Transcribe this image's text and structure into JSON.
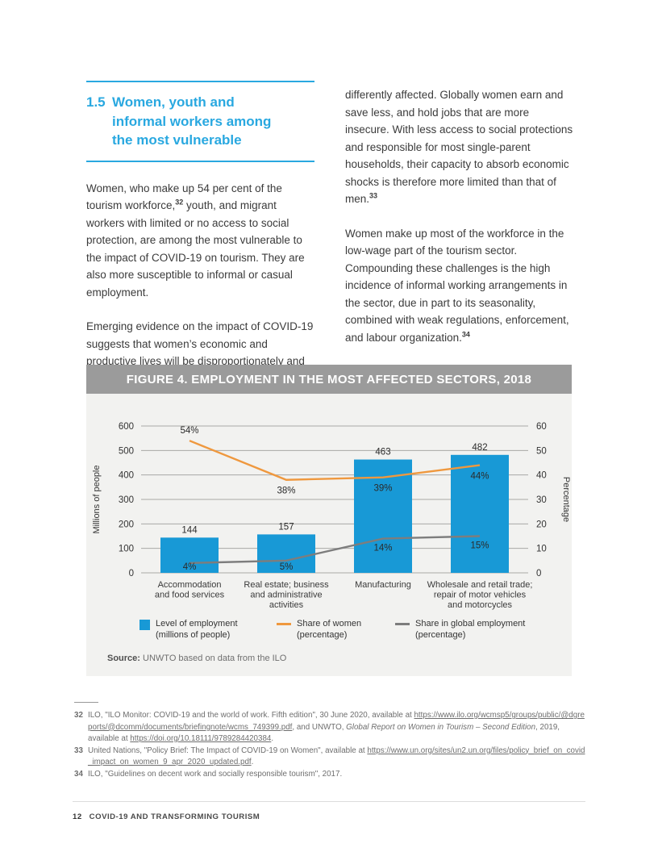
{
  "section": {
    "number": "1.5",
    "title": "Women, youth and informal workers among the most vulnerable"
  },
  "body": {
    "left_paragraphs": [
      [
        {
          "t": "Women, who make up 54 per cent of the tourism workforce,"
        },
        {
          "t": "32",
          "s": "sup"
        },
        {
          "t": " youth, and migrant workers with limited or no access to social protection, are among the most vulnerable to the impact of COVID-19 on tourism. They are also more susceptible to informal or casual employment."
        }
      ],
      [
        {
          "t": "Emerging evidence on the impact of COVID-19 suggests that women’s economic and productive lives will be disproportionately and"
        }
      ]
    ],
    "right_paragraphs": [
      [
        {
          "t": "differently affected. Globally women earn and save less, and hold jobs that are more insecure. With less access to social protections and responsible for most single-parent households, their capacity to absorb economic shocks is therefore more limited than that of men."
        },
        {
          "t": "33",
          "s": "sup"
        }
      ],
      [
        {
          "t": "Women make up most of the workforce in the low-wage part of the tourism sector. Compounding these challenges is the high incidence of informal working arrangements in the sector, due in part to its seasonality, combined with weak regulations, enforcement, and labour organization."
        },
        {
          "t": "34",
          "s": "sup"
        }
      ]
    ]
  },
  "chart_data": {
    "type": "bar+line",
    "title": "FIGURE 4. EMPLOYMENT IN THE MOST AFFECTED SECTORS, 2018",
    "categories": [
      [
        "Accommodation",
        "and food services"
      ],
      [
        "Real estate; business",
        "and administrative",
        "activities"
      ],
      [
        "Manufacturing"
      ],
      [
        "Wholesale and retail trade;",
        "repair of motor vehicles",
        "and motorcycles"
      ]
    ],
    "bar_series": {
      "name": "Level of employment (millions of people)",
      "values": [
        144,
        157,
        463,
        482
      ],
      "color": "#1899d6"
    },
    "line_series": [
      {
        "name": "Share of women (percentage)",
        "values": [
          54,
          38,
          39,
          44
        ],
        "labels": [
          "54%",
          "38%",
          "39%",
          "44%"
        ],
        "color": "#ef983e"
      },
      {
        "name": "Share in global employment (percentage)",
        "values": [
          4,
          5,
          14,
          15
        ],
        "labels": [
          "4%",
          "5%",
          "14%",
          "15%"
        ],
        "color": "#7d7d7d"
      }
    ],
    "left_axis": {
      "label": "Millions of people",
      "min": 0,
      "max": 600,
      "step": 100
    },
    "right_axis": {
      "label": "Percentage",
      "min": 0,
      "max": 60,
      "step": 10
    },
    "grid": true,
    "legend_position": "bottom",
    "legend": [
      {
        "swatch": "square",
        "color": "#1899d6",
        "lines": [
          "Level of employment",
          "(millions of people)"
        ]
      },
      {
        "swatch": "line",
        "color": "#ef983e",
        "lines": [
          "Share of women",
          "(percentage)"
        ]
      },
      {
        "swatch": "line",
        "color": "#7d7d7d",
        "lines": [
          "Share in global employment",
          "(percentage)"
        ]
      }
    ]
  },
  "figure": {
    "source_label": "Source:",
    "source_text": " UNWTO based on data from the ILO"
  },
  "footnotes": [
    {
      "num": "32",
      "segments": [
        {
          "t": "ILO, \"ILO Monitor: COVID-19 and the world of work. Fifth edition\", 30 June 2020, available at "
        },
        {
          "t": "https://www.ilo.org/wcmsp5/groups/public/@dgreports/@dcomm/documents/briefingnote/wcms_749399.pdf",
          "s": "link"
        },
        {
          "t": ", and UNWTO, "
        },
        {
          "t": "Global Report on Women in Tourism – Second Edition",
          "s": "italic"
        },
        {
          "t": ", 2019, available at "
        },
        {
          "t": "https://doi.org/10.18111/9789284420384",
          "s": "link"
        },
        {
          "t": "."
        }
      ]
    },
    {
      "num": "33",
      "segments": [
        {
          "t": "United Nations, \"Policy Brief: The Impact of COVID-19 on Women\", available at "
        },
        {
          "t": "https://www.un.org/sites/un2.un.org/files/policy_brief_on_covid_impact_on_women_9_apr_2020_updated.pdf",
          "s": "link"
        },
        {
          "t": "."
        }
      ]
    },
    {
      "num": "34",
      "segments": [
        {
          "t": "ILO, \"Guidelines on decent work and socially responsible tourism\", 2017."
        }
      ]
    }
  ],
  "footer": {
    "page_number": "12",
    "title": "COVID-19 AND TRANSFORMING TOURISM"
  },
  "colors": {
    "accent_blue": "#29a8e0",
    "bar_blue": "#1899d6",
    "line_orange": "#ef983e",
    "line_gray": "#7d7d7d",
    "figure_title_bg": "#9b9b9b",
    "figure_panel_bg": "#f2f2f0"
  }
}
